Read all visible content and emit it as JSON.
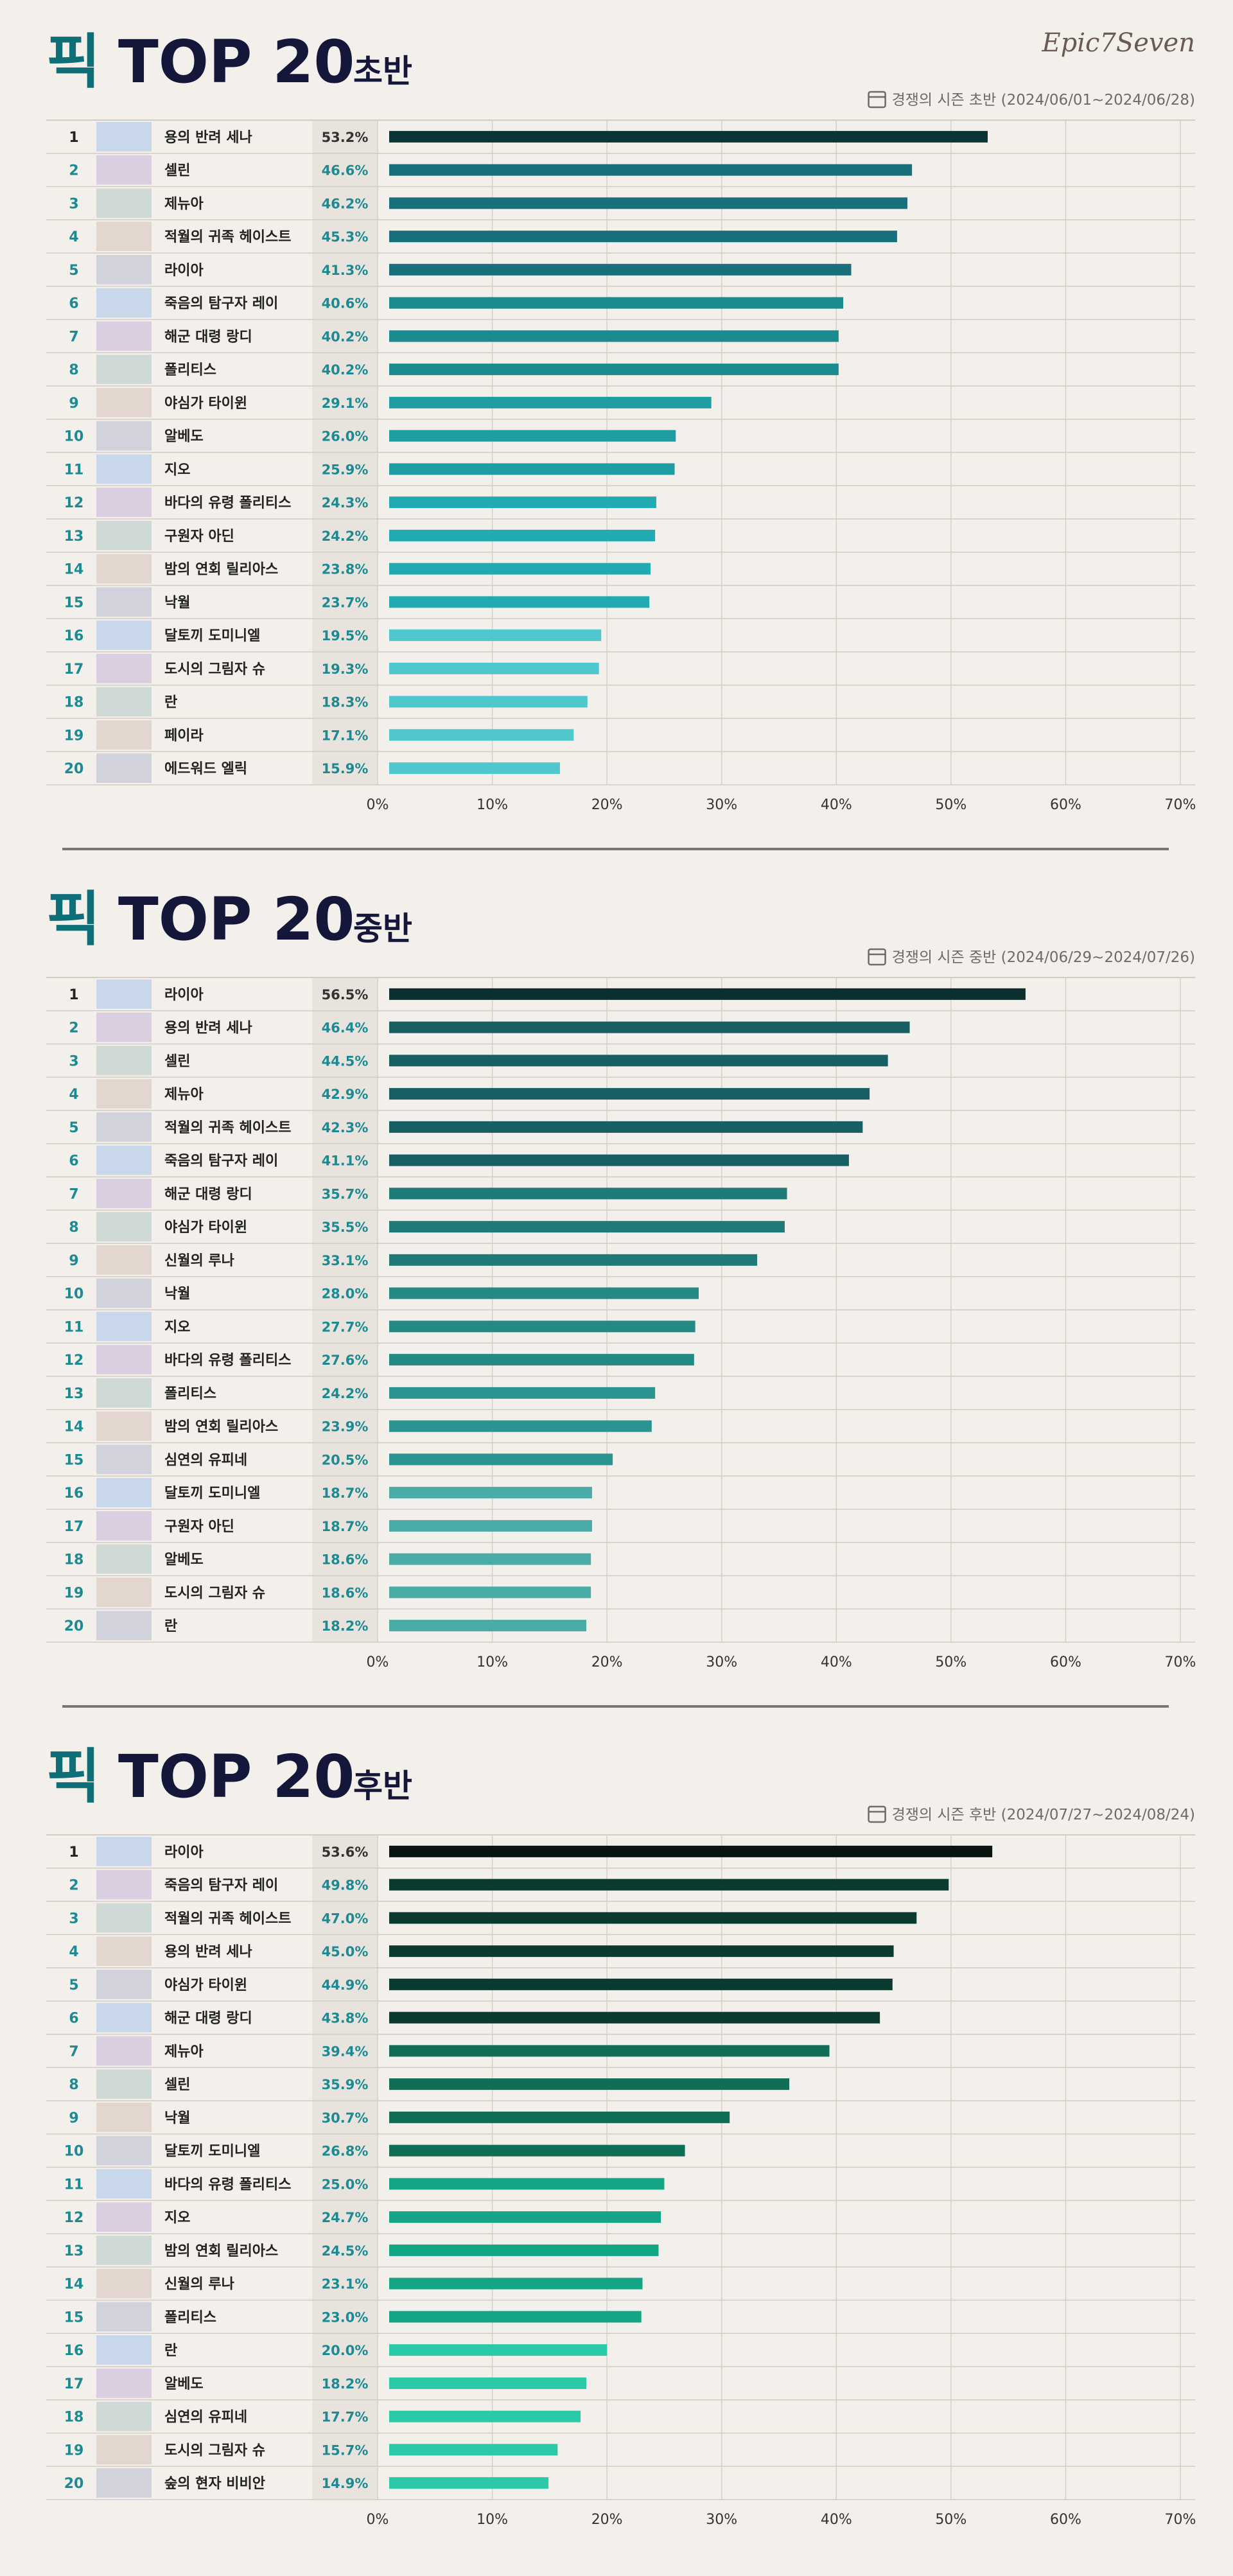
{
  "logo": "Epic7Seven",
  "chart_data": [
    {
      "type": "bar",
      "orientation": "horizontal",
      "title_mark": "픽",
      "title": "TOP 20",
      "phase": "초반",
      "subtitle": "경쟁의 시즌 초반 (2024/06/01~2024/06/28)",
      "ranks": [
        1,
        2,
        3,
        4,
        5,
        6,
        7,
        8,
        9,
        10,
        11,
        12,
        13,
        14,
        15,
        16,
        17,
        18,
        19,
        20
      ],
      "categories": [
        "용의 반려 세나",
        "셀린",
        "제뉴아",
        "적월의 귀족 헤이스트",
        "라이아",
        "죽음의 탐구자 레이",
        "해군 대령 랑디",
        "폴리티스",
        "야심가 타이윈",
        "알베도",
        "지오",
        "바다의 유령 폴리티스",
        "구원자 아딘",
        "밤의 연회 릴리아스",
        "낙월",
        "달토끼 도미니엘",
        "도시의 그림자 슈",
        "란",
        "페이라",
        "에드워드 엘릭"
      ],
      "values": [
        53.2,
        46.6,
        46.2,
        45.3,
        41.3,
        40.6,
        40.2,
        40.2,
        29.1,
        26.0,
        25.9,
        24.3,
        24.2,
        23.8,
        23.7,
        19.5,
        19.3,
        18.3,
        17.1,
        15.9
      ],
      "value_labels": [
        "53.2%",
        "46.6%",
        "46.2%",
        "45.3%",
        "41.3%",
        "40.6%",
        "40.2%",
        "40.2%",
        "29.1%",
        "26.0%",
        "25.9%",
        "24.3%",
        "24.2%",
        "23.8%",
        "23.7%",
        "19.5%",
        "19.3%",
        "18.3%",
        "17.1%",
        "15.9%"
      ],
      "colors": [
        "#0b3535",
        "#19707c",
        "#19707c",
        "#19707c",
        "#19707c",
        "#1a8c8f",
        "#1a8c8f",
        "#1a8c8f",
        "#1e9ea3",
        "#1e9ea3",
        "#1e9ea3",
        "#22aab3",
        "#22aab3",
        "#22aab3",
        "#22aab3",
        "#4fc7cc",
        "#4fc7cc",
        "#4fc7cc",
        "#4fc7cc",
        "#4fc7cc"
      ],
      "xlim": [
        0,
        70
      ],
      "xticks": [
        {
          "value": 0,
          "label": "0%"
        },
        {
          "value": 10,
          "label": "10%"
        },
        {
          "value": 20,
          "label": "20%"
        },
        {
          "value": 30,
          "label": "30%"
        },
        {
          "value": 40,
          "label": "40%"
        },
        {
          "value": 50,
          "label": "50%"
        },
        {
          "value": 60,
          "label": "60%"
        },
        {
          "value": 70,
          "label": "70%"
        }
      ],
      "grid": true
    },
    {
      "type": "bar",
      "orientation": "horizontal",
      "title_mark": "픽",
      "title": "TOP 20",
      "phase": "중반",
      "subtitle": "경쟁의 시즌 중반 (2024/06/29~2024/07/26)",
      "ranks": [
        1,
        2,
        3,
        4,
        5,
        6,
        7,
        8,
        9,
        10,
        11,
        12,
        13,
        14,
        15,
        16,
        17,
        18,
        19,
        20
      ],
      "categories": [
        "라이아",
        "용의 반려 세나",
        "셀린",
        "제뉴아",
        "적월의 귀족 헤이스트",
        "죽음의 탐구자 레이",
        "해군 대령 랑디",
        "야심가 타이윈",
        "신월의 루나",
        "낙월",
        "지오",
        "바다의 유령 폴리티스",
        "폴리티스",
        "밤의 연회 릴리아스",
        "심연의 유피네",
        "달토끼 도미니엘",
        "구원자 아딘",
        "알베도",
        "도시의 그림자 슈",
        "란"
      ],
      "values": [
        56.5,
        46.4,
        44.5,
        42.9,
        42.3,
        41.1,
        35.7,
        35.5,
        33.1,
        28.0,
        27.7,
        27.6,
        24.2,
        23.9,
        20.5,
        18.7,
        18.7,
        18.6,
        18.6,
        18.2
      ],
      "value_labels": [
        "56.5%",
        "46.4%",
        "44.5%",
        "42.9%",
        "42.3%",
        "41.1%",
        "35.7%",
        "35.5%",
        "33.1%",
        "28.0%",
        "27.7%",
        "27.6%",
        "24.2%",
        "23.9%",
        "20.5%",
        "18.7%",
        "18.7%",
        "18.6%",
        "18.6%",
        "18.2%"
      ],
      "colors": [
        "#0a2f2e",
        "#175f63",
        "#175f63",
        "#175f63",
        "#175f63",
        "#175f63",
        "#1f7a78",
        "#1f7a78",
        "#1f7a78",
        "#248a86",
        "#248a86",
        "#248a86",
        "#2a9490",
        "#2a9490",
        "#2a9490",
        "#4aaba7",
        "#4aaba7",
        "#4aaba7",
        "#4aaba7",
        "#4aaba7"
      ],
      "xlim": [
        0,
        70
      ],
      "xticks": [
        {
          "value": 0,
          "label": "0%"
        },
        {
          "value": 10,
          "label": "10%"
        },
        {
          "value": 20,
          "label": "20%"
        },
        {
          "value": 30,
          "label": "30%"
        },
        {
          "value": 40,
          "label": "40%"
        },
        {
          "value": 50,
          "label": "50%"
        },
        {
          "value": 60,
          "label": "60%"
        },
        {
          "value": 70,
          "label": "70%"
        }
      ],
      "grid": true
    },
    {
      "type": "bar",
      "orientation": "horizontal",
      "title_mark": "픽",
      "title": "TOP 20",
      "phase": "후반",
      "subtitle": "경쟁의 시즌 후반 (2024/07/27~2024/08/24)",
      "ranks": [
        1,
        2,
        3,
        4,
        5,
        6,
        7,
        8,
        9,
        10,
        11,
        12,
        13,
        14,
        15,
        16,
        17,
        18,
        19,
        20
      ],
      "categories": [
        "라이아",
        "죽음의 탐구자 레이",
        "적월의 귀족 헤이스트",
        "용의 반려 세나",
        "야심가 타이윈",
        "해군 대령 랑디",
        "제뉴아",
        "셀린",
        "낙월",
        "달토끼 도미니엘",
        "바다의 유령 폴리티스",
        "지오",
        "밤의 연회 릴리아스",
        "신월의 루나",
        "폴리티스",
        "란",
        "알베도",
        "심연의 유피네",
        "도시의 그림자 슈",
        "숲의 현자 비비안"
      ],
      "values": [
        53.6,
        49.8,
        47.0,
        45.0,
        44.9,
        43.8,
        39.4,
        35.9,
        30.7,
        26.8,
        25.0,
        24.7,
        24.5,
        23.1,
        23.0,
        20.0,
        18.2,
        17.7,
        15.7,
        14.9
      ],
      "value_labels": [
        "53.6%",
        "49.8%",
        "47.0%",
        "45.0%",
        "44.9%",
        "43.8%",
        "39.4%",
        "35.9%",
        "30.7%",
        "26.8%",
        "25.0%",
        "24.7%",
        "24.5%",
        "23.1%",
        "23.0%",
        "20.0%",
        "18.2%",
        "17.7%",
        "15.7%",
        "14.9%"
      ],
      "colors": [
        "#0a1512",
        "#0b3a30",
        "#0b3a30",
        "#0b3a30",
        "#0b3a30",
        "#0b3a30",
        "#0f6e55",
        "#0f6e55",
        "#0f6e55",
        "#0f6e55",
        "#13a585",
        "#13a585",
        "#13a585",
        "#13a585",
        "#13a585",
        "#2cc9a8",
        "#2cc9a8",
        "#2cc9a8",
        "#2cc9a8",
        "#2cc9a8"
      ],
      "xlim": [
        0,
        70
      ],
      "xticks": [
        {
          "value": 0,
          "label": "0%"
        },
        {
          "value": 10,
          "label": "10%"
        },
        {
          "value": 20,
          "label": "20%"
        },
        {
          "value": 30,
          "label": "30%"
        },
        {
          "value": 40,
          "label": "40%"
        },
        {
          "value": 50,
          "label": "50%"
        },
        {
          "value": 60,
          "label": "60%"
        },
        {
          "value": 70,
          "label": "70%"
        }
      ],
      "grid": true
    }
  ]
}
